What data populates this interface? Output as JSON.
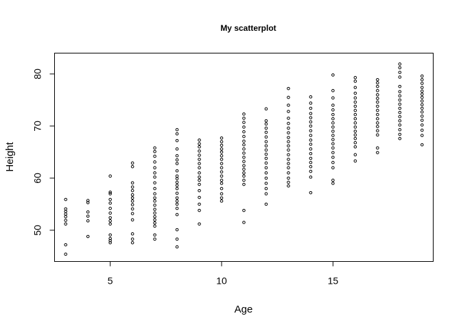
{
  "chart_data": {
    "type": "scatter",
    "title": "My scatterplot",
    "xlabel": "Age",
    "ylabel": "Height",
    "xlim": [
      2.5,
      19.5
    ],
    "ylim": [
      44,
      84
    ],
    "xticks": [
      5,
      10,
      15
    ],
    "yticks": [
      50,
      60,
      70,
      80
    ],
    "xtick_labels": [
      "5",
      "10",
      "15"
    ],
    "ytick_labels": [
      "50",
      "60",
      "70",
      "80"
    ],
    "grid": false,
    "legend": "none",
    "marker": "open-circle",
    "point_color": "#000000",
    "points": [
      [
        3,
        45.4
      ],
      [
        3,
        47.2
      ],
      [
        3,
        51.2
      ],
      [
        3,
        51.9
      ],
      [
        3,
        52.6
      ],
      [
        3,
        53.1
      ],
      [
        3,
        53.6
      ],
      [
        3,
        54.1
      ],
      [
        3,
        55.9
      ],
      [
        4,
        48.8
      ],
      [
        4,
        51.8
      ],
      [
        4,
        52.7
      ],
      [
        4,
        53.5
      ],
      [
        4,
        55.3
      ],
      [
        4,
        55.7
      ],
      [
        5,
        47.6
      ],
      [
        5,
        48.0
      ],
      [
        5,
        48.4
      ],
      [
        5,
        49.1
      ],
      [
        5,
        51.2
      ],
      [
        5,
        51.8
      ],
      [
        5,
        52.4
      ],
      [
        5,
        53.3
      ],
      [
        5,
        54.2
      ],
      [
        5,
        55.2
      ],
      [
        5,
        55.9
      ],
      [
        5,
        57.0
      ],
      [
        5,
        57.3
      ],
      [
        5,
        60.4
      ],
      [
        6,
        47.6
      ],
      [
        6,
        48.3
      ],
      [
        6,
        49.3
      ],
      [
        6,
        52.0
      ],
      [
        6,
        53.2
      ],
      [
        6,
        54.1
      ],
      [
        6,
        54.9
      ],
      [
        6,
        55.6
      ],
      [
        6,
        56.2
      ],
      [
        6,
        56.8
      ],
      [
        6,
        57.6
      ],
      [
        6,
        58.3
      ],
      [
        6,
        59.1
      ],
      [
        6,
        62.2
      ],
      [
        6,
        62.9
      ],
      [
        7,
        48.3
      ],
      [
        7,
        49.1
      ],
      [
        7,
        50.8
      ],
      [
        7,
        51.4
      ],
      [
        7,
        52.0
      ],
      [
        7,
        52.6
      ],
      [
        7,
        53.3
      ],
      [
        7,
        54.0
      ],
      [
        7,
        54.8
      ],
      [
        7,
        55.6
      ],
      [
        7,
        56.2
      ],
      [
        7,
        57.0
      ],
      [
        7,
        58.0
      ],
      [
        7,
        59.1
      ],
      [
        7,
        60.2
      ],
      [
        7,
        61.0
      ],
      [
        7,
        62.0
      ],
      [
        7,
        63.1
      ],
      [
        7,
        64.2
      ],
      [
        7,
        65.1
      ],
      [
        7,
        65.8
      ],
      [
        8,
        46.8
      ],
      [
        8,
        48.3
      ],
      [
        8,
        50.1
      ],
      [
        8,
        53.0
      ],
      [
        8,
        54.2
      ],
      [
        8,
        55.0
      ],
      [
        8,
        55.6
      ],
      [
        8,
        56.2
      ],
      [
        8,
        57.1
      ],
      [
        8,
        58.0
      ],
      [
        8,
        58.6
      ],
      [
        8,
        59.2
      ],
      [
        8,
        59.9
      ],
      [
        8,
        60.4
      ],
      [
        8,
        61.4
      ],
      [
        8,
        62.8
      ],
      [
        8,
        63.5
      ],
      [
        8,
        64.3
      ],
      [
        8,
        65.6
      ],
      [
        8,
        67.2
      ],
      [
        8,
        68.5
      ],
      [
        8,
        69.3
      ],
      [
        9,
        51.2
      ],
      [
        9,
        53.8
      ],
      [
        9,
        55.0
      ],
      [
        9,
        56.3
      ],
      [
        9,
        57.6
      ],
      [
        9,
        58.8
      ],
      [
        9,
        59.6
      ],
      [
        9,
        60.2
      ],
      [
        9,
        61.0
      ],
      [
        9,
        62.0
      ],
      [
        9,
        62.8
      ],
      [
        9,
        63.6
      ],
      [
        9,
        64.4
      ],
      [
        9,
        65.2
      ],
      [
        9,
        66.0
      ],
      [
        9,
        66.6
      ],
      [
        9,
        67.3
      ],
      [
        10,
        55.6
      ],
      [
        10,
        56.2
      ],
      [
        10,
        57.0
      ],
      [
        10,
        58.0
      ],
      [
        10,
        59.0
      ],
      [
        10,
        59.6
      ],
      [
        10,
        60.4
      ],
      [
        10,
        61.2
      ],
      [
        10,
        62.0
      ],
      [
        10,
        62.8
      ],
      [
        10,
        63.6
      ],
      [
        10,
        64.3
      ],
      [
        10,
        65.0
      ],
      [
        10,
        65.6
      ],
      [
        10,
        66.3
      ],
      [
        10,
        67.0
      ],
      [
        10,
        67.7
      ],
      [
        11,
        51.5
      ],
      [
        11,
        53.8
      ],
      [
        11,
        58.8
      ],
      [
        11,
        59.6
      ],
      [
        11,
        60.4
      ],
      [
        11,
        61.0
      ],
      [
        11,
        61.7
      ],
      [
        11,
        62.4
      ],
      [
        11,
        63.2
      ],
      [
        11,
        64.0
      ],
      [
        11,
        64.8
      ],
      [
        11,
        65.6
      ],
      [
        11,
        66.4
      ],
      [
        11,
        67.1
      ],
      [
        11,
        68.0
      ],
      [
        11,
        68.9
      ],
      [
        11,
        69.8
      ],
      [
        11,
        70.7
      ],
      [
        11,
        71.5
      ],
      [
        11,
        72.3
      ],
      [
        12,
        55.0
      ],
      [
        12,
        57.0
      ],
      [
        12,
        58.0
      ],
      [
        12,
        59.0
      ],
      [
        12,
        60.0
      ],
      [
        12,
        61.0
      ],
      [
        12,
        62.0
      ],
      [
        12,
        62.9
      ],
      [
        12,
        63.8
      ],
      [
        12,
        64.6
      ],
      [
        12,
        65.4
      ],
      [
        12,
        66.2
      ],
      [
        12,
        67.0
      ],
      [
        12,
        67.9
      ],
      [
        12,
        68.8
      ],
      [
        12,
        69.6
      ],
      [
        12,
        70.4
      ],
      [
        12,
        71.0
      ],
      [
        12,
        73.3
      ],
      [
        13,
        58.5
      ],
      [
        13,
        59.2
      ],
      [
        13,
        60.0
      ],
      [
        13,
        61.0
      ],
      [
        13,
        62.0
      ],
      [
        13,
        62.8
      ],
      [
        13,
        63.6
      ],
      [
        13,
        64.5
      ],
      [
        13,
        65.4
      ],
      [
        13,
        66.2
      ],
      [
        13,
        67.0
      ],
      [
        13,
        67.8
      ],
      [
        13,
        68.7
      ],
      [
        13,
        69.6
      ],
      [
        13,
        70.5
      ],
      [
        13,
        71.5
      ],
      [
        13,
        72.8
      ],
      [
        13,
        74.0
      ],
      [
        13,
        75.5
      ],
      [
        13,
        77.2
      ],
      [
        14,
        57.2
      ],
      [
        14,
        60.2
      ],
      [
        14,
        61.3
      ],
      [
        14,
        62.2
      ],
      [
        14,
        63.0
      ],
      [
        14,
        63.8
      ],
      [
        14,
        64.7
      ],
      [
        14,
        65.6
      ],
      [
        14,
        66.5
      ],
      [
        14,
        67.3
      ],
      [
        14,
        68.2
      ],
      [
        14,
        69.1
      ],
      [
        14,
        70.0
      ],
      [
        14,
        70.8
      ],
      [
        14,
        71.6
      ],
      [
        14,
        72.4
      ],
      [
        14,
        73.4
      ],
      [
        14,
        74.4
      ],
      [
        14,
        75.6
      ],
      [
        15,
        59.0
      ],
      [
        15,
        59.6
      ],
      [
        15,
        62.0
      ],
      [
        15,
        63.0
      ],
      [
        15,
        64.0
      ],
      [
        15,
        64.9
      ],
      [
        15,
        65.8
      ],
      [
        15,
        66.6
      ],
      [
        15,
        67.4
      ],
      [
        15,
        68.2
      ],
      [
        15,
        69.0
      ],
      [
        15,
        69.8
      ],
      [
        15,
        70.6
      ],
      [
        15,
        71.4
      ],
      [
        15,
        72.2
      ],
      [
        15,
        73.1
      ],
      [
        15,
        74.0
      ],
      [
        15,
        75.4
      ],
      [
        15,
        76.8
      ],
      [
        15,
        79.8
      ],
      [
        16,
        63.3
      ],
      [
        16,
        64.5
      ],
      [
        16,
        66.0
      ],
      [
        16,
        66.8
      ],
      [
        16,
        67.6
      ],
      [
        16,
        68.3
      ],
      [
        16,
        69.0
      ],
      [
        16,
        69.8
      ],
      [
        16,
        70.6
      ],
      [
        16,
        71.4
      ],
      [
        16,
        72.2
      ],
      [
        16,
        73.0
      ],
      [
        16,
        73.8
      ],
      [
        16,
        74.6
      ],
      [
        16,
        75.4
      ],
      [
        16,
        76.3
      ],
      [
        16,
        77.4
      ],
      [
        16,
        78.6
      ],
      [
        16,
        79.3
      ],
      [
        17,
        64.9
      ],
      [
        17,
        65.8
      ],
      [
        17,
        68.3
      ],
      [
        17,
        69.1
      ],
      [
        17,
        69.9
      ],
      [
        17,
        70.6
      ],
      [
        17,
        71.4
      ],
      [
        17,
        72.2
      ],
      [
        17,
        73.0
      ],
      [
        17,
        73.8
      ],
      [
        17,
        74.6
      ],
      [
        17,
        75.3
      ],
      [
        17,
        76.0
      ],
      [
        17,
        76.8
      ],
      [
        17,
        77.6
      ],
      [
        17,
        78.3
      ],
      [
        17,
        78.9
      ],
      [
        18,
        67.6
      ],
      [
        18,
        68.4
      ],
      [
        18,
        69.3
      ],
      [
        18,
        70.2
      ],
      [
        18,
        71.0
      ],
      [
        18,
        71.8
      ],
      [
        18,
        72.6
      ],
      [
        18,
        73.4
      ],
      [
        18,
        74.2
      ],
      [
        18,
        75.0
      ],
      [
        18,
        75.8
      ],
      [
        18,
        76.6
      ],
      [
        18,
        77.6
      ],
      [
        18,
        79.4
      ],
      [
        18,
        80.3
      ],
      [
        18,
        81.2
      ],
      [
        18,
        81.9
      ],
      [
        19,
        66.4
      ],
      [
        19,
        68.2
      ],
      [
        19,
        69.2
      ],
      [
        19,
        70.2
      ],
      [
        19,
        71.1
      ],
      [
        19,
        71.9
      ],
      [
        19,
        72.7
      ],
      [
        19,
        73.4
      ],
      [
        19,
        74.1
      ],
      [
        19,
        74.8
      ],
      [
        19,
        75.5
      ],
      [
        19,
        76.1
      ],
      [
        19,
        76.7
      ],
      [
        19,
        77.4
      ],
      [
        19,
        78.2
      ],
      [
        19,
        78.9
      ],
      [
        19,
        79.6
      ]
    ]
  }
}
